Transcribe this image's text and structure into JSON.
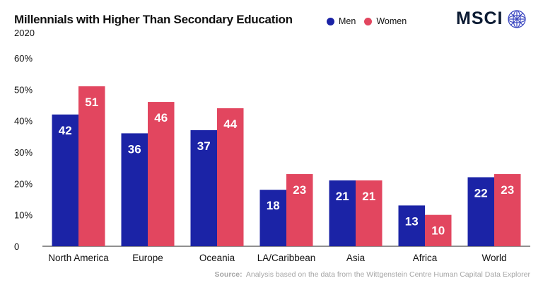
{
  "chart_data": {
    "type": "bar",
    "title": "Millennials with Higher Than Secondary Education",
    "subtitle": "2020",
    "categories": [
      "North America",
      "Europe",
      "Oceania",
      "LA/Caribbean",
      "Asia",
      "Africa",
      "World"
    ],
    "series": [
      {
        "name": "Men",
        "color": "#1b23a6",
        "values": [
          42,
          36,
          37,
          18,
          21,
          13,
          22
        ]
      },
      {
        "name": "Women",
        "color": "#e2465f",
        "values": [
          51,
          46,
          44,
          23,
          21,
          10,
          23
        ]
      }
    ],
    "yticks": [
      "0",
      "10%",
      "20%",
      "30%",
      "40%",
      "50%",
      "60%"
    ],
    "ylim": [
      0,
      60
    ],
    "grid": false,
    "legend_position": "top"
  },
  "brand": {
    "logo_text": "MSCI"
  },
  "source": {
    "label": "Source:",
    "text": "Analysis based on the data from the Wittgenstein Centre Human Capital Data Explorer"
  }
}
